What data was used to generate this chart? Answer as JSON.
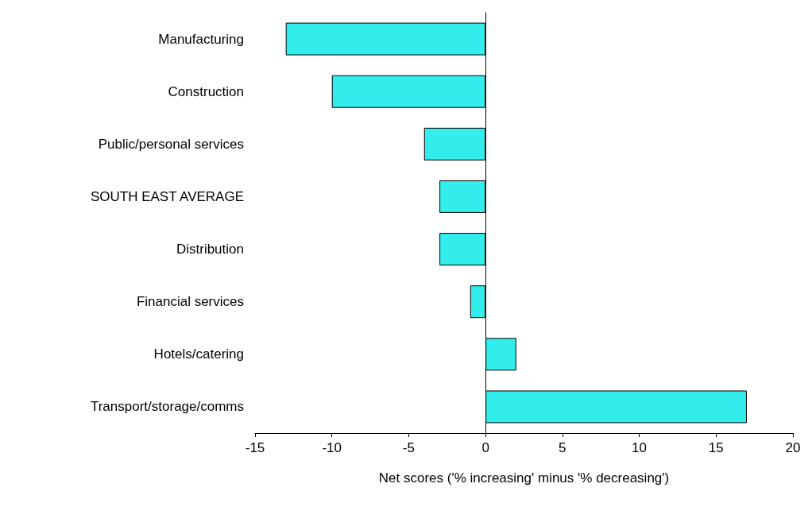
{
  "chart_data": {
    "type": "bar",
    "orientation": "horizontal",
    "xlabel": "Net scores ('% increasing' minus '% decreasing')",
    "categories": [
      "Manufacturing",
      "Construction",
      "Public/personal services",
      "SOUTH EAST AVERAGE",
      "Distribution",
      "Financial services",
      "Hotels/catering",
      "Transport/storage/comms"
    ],
    "values": [
      -13,
      -10,
      -4,
      -3,
      -3,
      -1,
      2,
      17
    ],
    "color": "#33ecec",
    "xlim": [
      -15,
      20
    ],
    "xticks": [
      -15,
      -10,
      -5,
      0,
      5,
      10,
      15,
      20
    ]
  }
}
